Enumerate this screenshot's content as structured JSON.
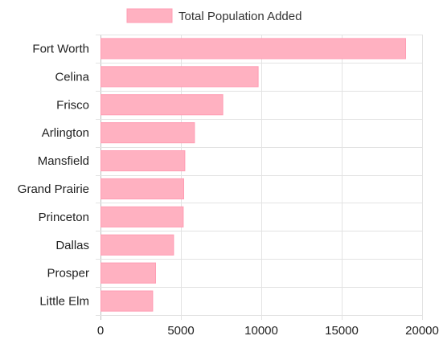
{
  "chart_data": {
    "type": "bar",
    "orientation": "horizontal",
    "legend": {
      "position": "top-center"
    },
    "categories": [
      "Fort Worth",
      "Celina",
      "Frisco",
      "Arlington",
      "Mansfield",
      "Grand Prairie",
      "Princeton",
      "Dallas",
      "Prosper",
      "Little Elm"
    ],
    "series": [
      {
        "name": "Total Population Added",
        "color": "#ffb1c1",
        "border_color": "#ff9db4",
        "values": [
          18950,
          9780,
          7580,
          5820,
          5220,
          5150,
          5120,
          4520,
          3400,
          3220
        ]
      }
    ],
    "xlim": [
      0,
      20000
    ],
    "xticks": [
      0,
      5000,
      10000,
      15000,
      20000
    ],
    "grid": true
  }
}
